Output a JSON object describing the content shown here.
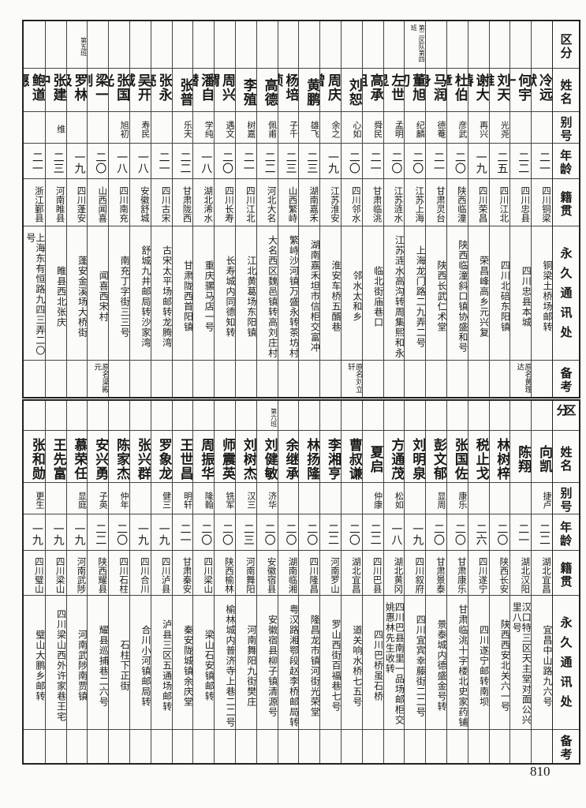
{
  "headers": [
    "区分",
    "姓名",
    "别号",
    "年龄",
    "籍贯",
    "永久通讯处",
    "备考"
  ],
  "tables": [
    {
      "people": [
        {
          "division": "",
          "name": "冷远猷",
          "alias": "",
          "age": "二一",
          "native": "四川铜梁",
          "address": "铜梁土桥场邮转",
          "note": ""
        },
        {
          "division": "",
          "name": "何宇一",
          "alias": "",
          "age": "二二",
          "native": "四川忠县",
          "address": "四川忠县本城",
          "note": "原名黄理达"
        },
        {
          "division": "",
          "name": "刘天维",
          "alias": "光尧",
          "age": "二五",
          "native": "四川江北",
          "address": "四川北碚东阳镇",
          "note": ""
        },
        {
          "division": "",
          "name": "谢大椿",
          "alias": "再兴",
          "age": "一九",
          "native": "四川荣昌",
          "address": "荣昌峰高乡元兴复",
          "note": ""
        },
        {
          "division": "",
          "name": "杜伯章",
          "alias": "彦武",
          "age": "二〇",
          "native": "陕西临潼",
          "address": "陕西临潼斜口镇协盛和号",
          "note": ""
        },
        {
          "division": "",
          "name": "马润身",
          "alias": "德菴",
          "age": "二一",
          "native": "甘肃灵台",
          "address": "陕西长武仁术堂",
          "note": ""
        },
        {
          "division": "第二区队第四班",
          "name": "董旭初",
          "alias": "纪麟",
          "age": "二〇",
          "native": "江苏上海",
          "address": "上海龙门路二九弄二号",
          "note": ""
        },
        {
          "division": "",
          "name": "左世显",
          "alias": "孟明",
          "age": "二〇",
          "native": "江苏涟水",
          "address": "江苏涟水高沟转周集熙和永",
          "note": ""
        },
        {
          "division": "",
          "name": "高承祖",
          "alias": "舜民",
          "age": "二一",
          "native": "甘肃临洮",
          "address": "临北街庙巷口",
          "note": ""
        },
        {
          "division": "",
          "name": "刘恕",
          "alias": "心如",
          "age": "二〇",
          "native": "四川邻水",
          "address": "邻水太和乡",
          "note": "原名刘立轩"
        },
        {
          "division": "",
          "name": "周庆曾",
          "alias": "余之",
          "age": "一九",
          "native": "江苏淮安",
          "address": "淮安车桥五醑巷",
          "note": ""
        },
        {
          "division": "",
          "name": "黄鹏",
          "alias": "雄飞",
          "age": "二三",
          "native": "湖南嘉禾",
          "address": "湖南嘉禾坦市信柜交富冲",
          "note": ""
        },
        {
          "division": "",
          "name": "杨培桢",
          "alias": "子千",
          "age": "二三",
          "native": "山西繁峙",
          "address": "繁峙沙河镇万盛永转茶坊村",
          "note": ""
        },
        {
          "division": "",
          "name": "高德",
          "alias": "佩甫",
          "age": "二二",
          "native": "河北大名",
          "address": "大名西区魏邑镇转高刘庄村",
          "note": ""
        },
        {
          "division": "",
          "name": "李殖",
          "alias": "树嘉",
          "age": "二一",
          "native": "四川江北",
          "address": "江北黄葛场东阳镇",
          "note": ""
        },
        {
          "division": "",
          "name": "周兴谓",
          "alias": "遇文",
          "age": "二〇",
          "native": "四川长寿",
          "address": "长寿城内同德知转",
          "note": ""
        },
        {
          "division": "",
          "name": "潘自潜",
          "alias": "学纯",
          "age": "一八",
          "native": "湖北浠水",
          "address": "重庆骡马店一号",
          "note": ""
        },
        {
          "division": "",
          "name": "张普",
          "alias": "乐天",
          "age": "二二",
          "native": "甘肃陇西",
          "address": "甘肃陇西首阳镇",
          "note": ""
        },
        {
          "division": "",
          "name": "张永亮",
          "alias": "",
          "age": "二一",
          "native": "四川古宋",
          "address": "古宋太平场邮转龙腾湾",
          "note": ""
        },
        {
          "division": "",
          "name": "吴开域",
          "alias": "寿民",
          "age": "一八",
          "native": "安徽舒城",
          "address": "舒城九井邮局转沙家湾",
          "note": ""
        },
        {
          "division": "",
          "name": "张国光",
          "alias": "旭初",
          "age": "一八",
          "native": "四川南充",
          "address": "南充丁字街三三号",
          "note": ""
        },
        {
          "division": "",
          "name": "梁一刚",
          "alias": "",
          "age": "二〇",
          "native": "山西闻喜",
          "address": "闻喜西宋村",
          "note": "原名梁殿元"
        },
        {
          "division": "第五班",
          "name": "罗林极",
          "alias": "",
          "age": "一九",
          "native": "四川蓬安",
          "address": "蓬安金溪场大桥街",
          "note": ""
        },
        {
          "division": "",
          "name": "张建中",
          "alias": "维",
          "age": "二三",
          "native": "河南睢县",
          "address": "睢县西北张庆",
          "note": ""
        },
        {
          "division": "",
          "name": "鲍道惠",
          "alias": "",
          "age": "二一",
          "native": "浙江鄞县",
          "address": "上海东有恒路九四三弄二〇号",
          "note": ""
        }
      ]
    },
    {
      "people": [
        {
          "division": "",
          "name": "向凯",
          "alias": "捷卢",
          "age": "二二",
          "native": "湖北宜昌",
          "address": "宜昌中山路九六号",
          "note": ""
        },
        {
          "division": "",
          "name": "陈翔",
          "alias": "",
          "age": "二一",
          "native": "湖北汉阳",
          "address": "汉口特三区天主堂对面公兴里八号",
          "note": ""
        },
        {
          "division": "",
          "name": "林树梓",
          "alias": "",
          "age": "二〇",
          "native": "陕西长安",
          "address": "陕西西安北关六一号",
          "note": ""
        },
        {
          "division": "",
          "name": "税止戈",
          "alias": "",
          "age": "二六",
          "native": "四川遂宁",
          "address": "四川遂宁邮转南坝",
          "note": ""
        },
        {
          "division": "",
          "name": "张国佐",
          "alias": "康乐",
          "age": "二〇",
          "native": "甘肃康乐",
          "address": "甘肃临洮十字楼北史家药铺",
          "note": ""
        },
        {
          "division": "",
          "name": "彭文郁",
          "alias": "显周",
          "age": "二〇",
          "native": "甘肃景泰",
          "address": "景泰城内德盛金号转",
          "note": ""
        },
        {
          "division": "",
          "name": "刘明泉",
          "alias": "",
          "age": "一九",
          "native": "四川叙府",
          "address": "四川宜宾幸藤街二二号",
          "note": ""
        },
        {
          "division": "",
          "name": "方通茂",
          "alias": "松如",
          "age": "一八",
          "native": "湖北黄冈",
          "address": "四川巴县南里一品场邮柜交姚惠林先生收转",
          "note": ""
        },
        {
          "division": "",
          "name": "夏启",
          "alias": "仲康",
          "age": "二二",
          "native": "四川巴县",
          "address": "四川巴桥虽石桥",
          "note": ""
        },
        {
          "division": "",
          "name": "曹叔谦",
          "alias": "",
          "age": "二〇",
          "native": "湖北宜昌",
          "address": "道关响水桥七五号",
          "note": ""
        },
        {
          "division": "",
          "name": "李湘亨",
          "alias": "",
          "age": "二二",
          "native": "河南罗山",
          "address": "罗山西街百福巷七号",
          "note": ""
        },
        {
          "division": "",
          "name": "林扬隆",
          "alias": "",
          "age": "二〇",
          "native": "四川隆昌",
          "address": "隆昌龙市镇河街光荣堂",
          "note": ""
        },
        {
          "division": "",
          "name": "余继承",
          "alias": "",
          "age": "二〇",
          "native": "湖南临湘",
          "address": "粤汉路湘鄂段赵李桥邮局转",
          "note": ""
        },
        {
          "division": "第六班",
          "name": "刘健敏",
          "alias": "济华",
          "age": "二〇",
          "native": "安徽宿县",
          "address": "安徽宿县柳子镇清源号",
          "note": ""
        },
        {
          "division": "",
          "name": "刘树杰",
          "alias": "汉三",
          "age": "二三",
          "native": "河南舞阳",
          "address": "河南舞阳九街樊庄",
          "note": ""
        },
        {
          "division": "",
          "name": "师震英",
          "alias": "铣军",
          "age": "二〇",
          "native": "陕西榆林",
          "address": "榆林城内普济寺上巷二二号",
          "note": ""
        },
        {
          "division": "",
          "name": "周振华",
          "alias": "隆翰",
          "age": "二〇",
          "native": "四川梁山",
          "address": "梁山石安镇邮转",
          "note": ""
        },
        {
          "division": "",
          "name": "王世昌",
          "alias": "明轩",
          "age": "二一",
          "native": "甘肃秦安",
          "address": "秦安陇城镇余庆堂",
          "note": ""
        },
        {
          "division": "",
          "name": "罗象龙",
          "alias": "健三",
          "age": "一九",
          "native": "四川泸县",
          "address": "泸县三区五通场邮转",
          "note": ""
        },
        {
          "division": "",
          "name": "张兴群",
          "alias": "",
          "age": "一九",
          "native": "四川合川",
          "address": "合川小河镇邮局转",
          "note": ""
        },
        {
          "division": "",
          "name": "陈家杰",
          "alias": "仲年",
          "age": "二〇",
          "native": "四川石柱",
          "address": "石柱下正街",
          "note": ""
        },
        {
          "division": "",
          "name": "安兴勇",
          "alias": "子英",
          "age": "二二",
          "native": "陕西耀县",
          "address": "耀县巡捕巷二六号",
          "note": ""
        },
        {
          "division": "",
          "name": "慕荣任",
          "alias": "显庭",
          "age": "一九",
          "native": "河南武陟",
          "address": "河南武陟南贾镇",
          "note": ""
        },
        {
          "division": "",
          "name": "王先富",
          "alias": "",
          "age": "一九",
          "native": "四川梁山",
          "address": "四川梁山西外许家巷王宅",
          "note": ""
        },
        {
          "division": "",
          "name": "张和勋",
          "alias": "更生",
          "age": "一九",
          "native": "四川璧山",
          "address": "璧山大鹏乡邮转",
          "note": ""
        }
      ]
    }
  ],
  "page_number": "810"
}
